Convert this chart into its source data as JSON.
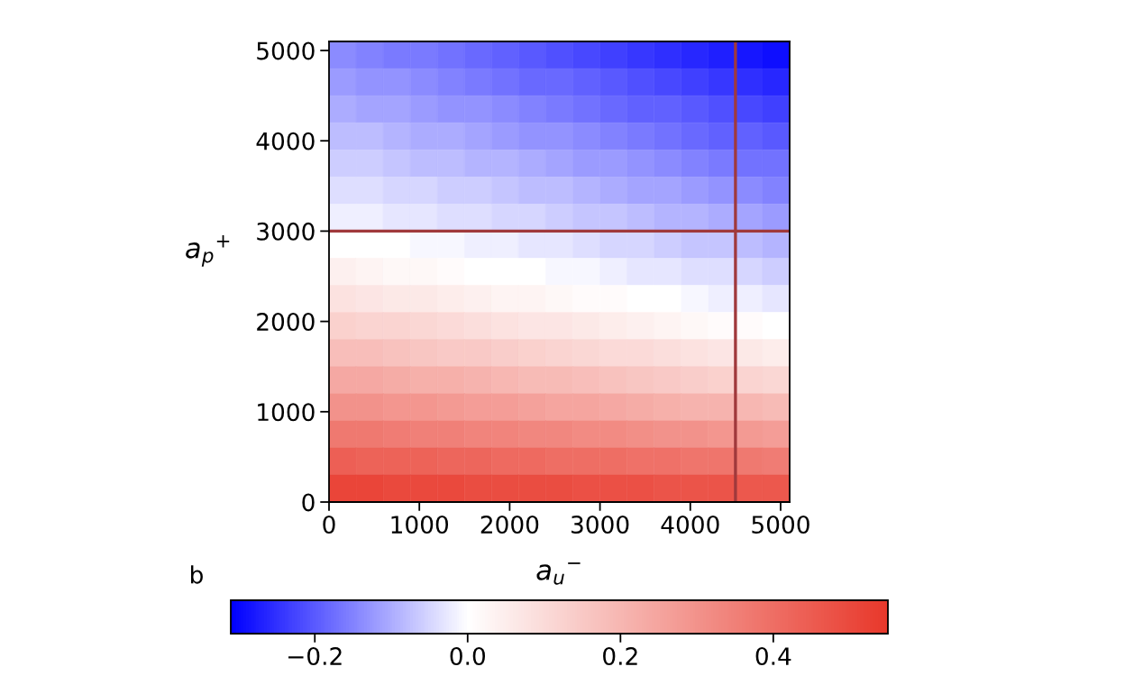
{
  "chart_data": {
    "type": "heatmap",
    "xlabel": "a$_{u}$$^{−}$",
    "ylabel": "a$_{p}$$^{+}$",
    "annotations": [
      "b"
    ],
    "xlim": [
      0,
      5100
    ],
    "ylim": [
      0,
      5100
    ],
    "xticks": [
      0,
      1000,
      2000,
      3000,
      4000,
      5000
    ],
    "yticks": [
      0,
      1000,
      2000,
      3000,
      4000,
      5000
    ],
    "colors": [
      "#0000ff",
      "#ffffff",
      "#e8382b"
    ],
    "clim": [
      -0.31,
      0.55
    ],
    "cticks": [
      {
        "value": -0.2,
        "label": "−0.2"
      },
      {
        "value": 0,
        "label": "0.0"
      },
      0.2,
      0.4
    ],
    "ref_lines": [
      {
        "axis": "y",
        "value": 3000,
        "color": "#a0393c"
      },
      {
        "axis": "x",
        "value": 4500,
        "color": "#a0393c"
      }
    ],
    "cells": [
      [
        -0.14,
        -0.15,
        -0.16,
        -0.16,
        -0.17,
        -0.18,
        -0.19,
        -0.2,
        -0.21,
        -0.22,
        -0.23,
        -0.24,
        -0.25,
        -0.26,
        -0.27,
        -0.28,
        -0.29
      ],
      [
        -0.12,
        -0.13,
        -0.13,
        -0.14,
        -0.15,
        -0.16,
        -0.17,
        -0.18,
        -0.18,
        -0.19,
        -0.2,
        -0.21,
        -0.22,
        -0.23,
        -0.24,
        -0.25,
        -0.26
      ],
      [
        -0.1,
        -0.11,
        -0.11,
        -0.12,
        -0.13,
        -0.13,
        -0.14,
        -0.15,
        -0.16,
        -0.17,
        -0.18,
        -0.19,
        -0.19,
        -0.2,
        -0.21,
        -0.22,
        -0.23
      ],
      [
        -0.08,
        -0.08,
        -0.09,
        -0.1,
        -0.1,
        -0.11,
        -0.12,
        -0.13,
        -0.13,
        -0.14,
        -0.15,
        -0.16,
        -0.17,
        -0.18,
        -0.19,
        -0.19,
        -0.2
      ],
      [
        -0.06,
        -0.06,
        -0.07,
        -0.08,
        -0.08,
        -0.09,
        -0.09,
        -0.1,
        -0.11,
        -0.12,
        -0.12,
        -0.13,
        -0.14,
        -0.15,
        -0.16,
        -0.17,
        -0.17
      ],
      [
        -0.04,
        -0.04,
        -0.05,
        -0.05,
        -0.06,
        -0.06,
        -0.07,
        -0.08,
        -0.08,
        -0.09,
        -0.1,
        -0.11,
        -0.11,
        -0.12,
        -0.13,
        -0.14,
        -0.15
      ],
      [
        -0.02,
        -0.02,
        -0.03,
        -0.03,
        -0.04,
        -0.04,
        -0.05,
        -0.05,
        -0.06,
        -0.07,
        -0.07,
        -0.08,
        -0.09,
        -0.09,
        -0.1,
        -0.11,
        -0.12
      ],
      [
        0.0,
        0.0,
        0.0,
        -0.01,
        -0.01,
        -0.02,
        -0.02,
        -0.03,
        -0.03,
        -0.04,
        -0.05,
        -0.05,
        -0.06,
        -0.07,
        -0.07,
        -0.08,
        -0.09
      ],
      [
        0.04,
        0.03,
        0.02,
        0.02,
        0.01,
        0.0,
        0.0,
        0.0,
        -0.01,
        -0.01,
        -0.02,
        -0.03,
        -0.03,
        -0.04,
        -0.04,
        -0.05,
        -0.06
      ],
      [
        0.08,
        0.07,
        0.06,
        0.06,
        0.05,
        0.04,
        0.03,
        0.03,
        0.02,
        0.01,
        0.01,
        0.0,
        0.0,
        -0.01,
        -0.02,
        -0.02,
        -0.03
      ],
      [
        0.13,
        0.12,
        0.12,
        0.11,
        0.1,
        0.09,
        0.08,
        0.07,
        0.07,
        0.06,
        0.05,
        0.04,
        0.03,
        0.02,
        0.01,
        0.01,
        0.0
      ],
      [
        0.18,
        0.18,
        0.17,
        0.16,
        0.15,
        0.15,
        0.14,
        0.13,
        0.12,
        0.11,
        0.1,
        0.1,
        0.09,
        0.08,
        0.07,
        0.06,
        0.05
      ],
      [
        0.24,
        0.24,
        0.23,
        0.22,
        0.22,
        0.21,
        0.2,
        0.19,
        0.19,
        0.18,
        0.17,
        0.16,
        0.15,
        0.14,
        0.13,
        0.12,
        0.11
      ],
      [
        0.3,
        0.3,
        0.29,
        0.29,
        0.28,
        0.27,
        0.27,
        0.26,
        0.25,
        0.25,
        0.24,
        0.23,
        0.22,
        0.21,
        0.21,
        0.2,
        0.19
      ],
      [
        0.37,
        0.37,
        0.36,
        0.35,
        0.35,
        0.34,
        0.34,
        0.33,
        0.33,
        0.32,
        0.32,
        0.31,
        0.3,
        0.3,
        0.29,
        0.28,
        0.27
      ],
      [
        0.44,
        0.43,
        0.43,
        0.43,
        0.42,
        0.42,
        0.41,
        0.41,
        0.4,
        0.4,
        0.4,
        0.39,
        0.39,
        0.38,
        0.38,
        0.37,
        0.36
      ],
      [
        0.51,
        0.51,
        0.5,
        0.5,
        0.5,
        0.49,
        0.49,
        0.49,
        0.49,
        0.48,
        0.48,
        0.48,
        0.47,
        0.47,
        0.47,
        0.46,
        0.46
      ]
    ]
  }
}
